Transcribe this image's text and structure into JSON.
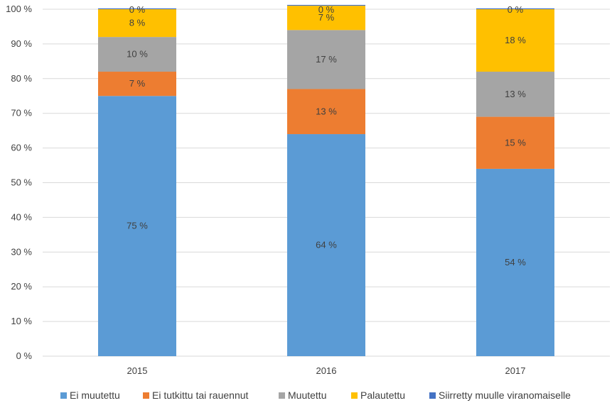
{
  "chart_data": {
    "type": "bar",
    "stacked": true,
    "categories": [
      "2015",
      "2016",
      "2017"
    ],
    "series": [
      {
        "name": "Ei muutettu",
        "color": "#5B9BD5",
        "values": [
          75,
          64,
          54
        ],
        "labels": [
          "75 %",
          "64 %",
          "54 %"
        ]
      },
      {
        "name": "Ei tutkittu tai rauennut",
        "color": "#ED7D31",
        "values": [
          7,
          13,
          15
        ],
        "labels": [
          "7 %",
          "13 %",
          "15 %"
        ]
      },
      {
        "name": "Muutettu",
        "color": "#A5A5A5",
        "values": [
          10,
          17,
          13
        ],
        "labels": [
          "10 %",
          "17 %",
          "13 %"
        ]
      },
      {
        "name": "Palautettu",
        "color": "#FFC000",
        "values": [
          8,
          7,
          18
        ],
        "labels": [
          "8 %",
          "7 %",
          "18 %"
        ]
      },
      {
        "name": "Siirretty muulle viranomaiselle",
        "color": "#4472C4",
        "values": [
          0,
          0,
          0
        ],
        "labels": [
          "0 %",
          "0 %",
          "0 %"
        ]
      }
    ],
    "ylim": [
      0,
      100
    ],
    "y_ticks": [
      0,
      10,
      20,
      30,
      40,
      50,
      60,
      70,
      80,
      90,
      100
    ],
    "y_tick_labels": [
      "0 %",
      "10 %",
      "20 %",
      "30 %",
      "40 %",
      "50 %",
      "60 %",
      "70 %",
      "80 %",
      "90 %",
      "100 %"
    ],
    "legend_position": "bottom",
    "grid": true,
    "title": "",
    "xlabel": "",
    "ylabel": ""
  }
}
